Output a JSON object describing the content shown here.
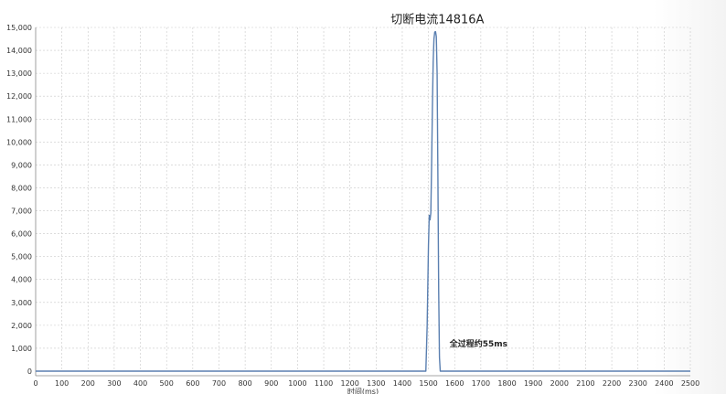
{
  "chart_data": {
    "type": "line",
    "title": "",
    "xlabel": "时间(ms)",
    "ylabel": "",
    "xlim": [
      0,
      2500
    ],
    "ylim": [
      0,
      15000
    ],
    "x_ticks": [
      0,
      100,
      200,
      300,
      400,
      500,
      600,
      700,
      800,
      900,
      1000,
      1100,
      1200,
      1300,
      1400,
      1500,
      1600,
      1700,
      1800,
      1900,
      2000,
      2100,
      2200,
      2300,
      2400,
      2500
    ],
    "x_tick_labels": [
      "0",
      "100",
      "200",
      "300",
      "400",
      "500",
      "600",
      "700",
      "800",
      "900",
      "1000",
      "1100",
      "1200",
      "1300",
      "1400",
      "1500",
      "1600",
      "1700",
      "1800",
      "1900",
      "2000",
      "2100",
      "2200",
      "2300",
      "2400",
      "2500"
    ],
    "y_ticks": [
      0,
      1000,
      2000,
      3000,
      4000,
      5000,
      6000,
      7000,
      8000,
      9000,
      10000,
      11000,
      12000,
      13000,
      14000,
      15000
    ],
    "y_tick_labels": [
      "0",
      "1,000",
      "2,000",
      "3,000",
      "4,000",
      "5,000",
      "6,000",
      "7,000",
      "8,000",
      "9,000",
      "10,000",
      "11,000",
      "12,000",
      "13,000",
      "14,000",
      "15,000"
    ],
    "grid": true,
    "series": [
      {
        "color": "#5a7fb0",
        "x": [
          0,
          1490,
          1495,
          1500,
          1503,
          1506,
          1509,
          1512,
          1515,
          1518,
          1521,
          1524,
          1527,
          1530,
          1533,
          1536,
          1539,
          1542,
          1545,
          2500
        ],
        "y": [
          0,
          0,
          2000,
          5500,
          6800,
          6600,
          6900,
          9000,
          11500,
          13500,
          14500,
          14800,
          14816,
          14600,
          13000,
          8500,
          3500,
          600,
          0,
          0
        ]
      }
    ],
    "annotations": [
      {
        "text": "切断电流14816A",
        "x": 1527,
        "y": 14816
      },
      {
        "text": "全过程约55ms",
        "x": 1560,
        "y": 800
      }
    ]
  }
}
